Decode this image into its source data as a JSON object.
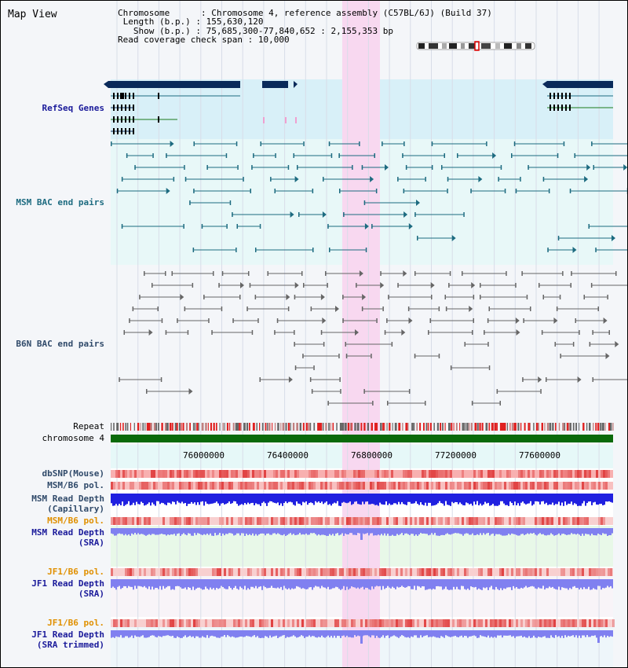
{
  "view_title": "Map View",
  "info": {
    "chromosome_label": "Chromosome",
    "chromosome_value": "Chromosome 4, reference assembly (C57BL/6J) (Build 37)",
    "length_label": "Length (b.p.)",
    "length_value": "155,630,120",
    "show_label": "Show (b.p.)",
    "show_value": "75,685,300-77,840,652 : 2,155,353 bp",
    "coverage_label": "Read coverage check span",
    "coverage_value": "10,000"
  },
  "tracks": {
    "refseq": "RefSeq Genes",
    "msm_bac": "MSM BAC end pairs",
    "b6n_bac": "B6N BAC end pairs",
    "repeat": "Repeat",
    "chromosome": "chromosome 4",
    "dbsnp": "dbSNP(Mouse)",
    "msm_b6_pol_1": "MSM/B6 pol.",
    "msm_depth_cap_1": "MSM Read Depth",
    "msm_depth_cap_2": "(Capillary)",
    "msm_b6_pol_2": "MSM/B6 pol.",
    "msm_depth_sra_1": "MSM Read Depth",
    "msm_depth_sra_2": "(SRA)",
    "jf1_b6_pol_1": "JF1/B6 pol.",
    "jf1_depth_sra_1": "JF1 Read Depth",
    "jf1_depth_sra_2": "(SRA)",
    "jf1_b6_pol_2": "JF1/B6 pol.",
    "jf1_depth_trim_1": "JF1 Read Depth",
    "jf1_depth_trim_2": "(SRA trimmed)"
  },
  "axis": {
    "ticks": [
      "76000000",
      "76400000",
      "76800000",
      "77200000",
      "77600000"
    ]
  },
  "colors": {
    "highlight": "#f8d8f0",
    "refseq_bg": "#d8f0f8",
    "bac_bg": "#e8f8f8",
    "gene_dark": "#0a2a5a",
    "gene_green": "#1a7a1a",
    "bac_teal": "#1d6b80",
    "bac_gray": "#666666",
    "chromosome_bar": "#0a6a0a",
    "snp_red": "#e04040",
    "depth_blue": "#2020e0",
    "depth_light_blue": "#8080f0"
  }
}
